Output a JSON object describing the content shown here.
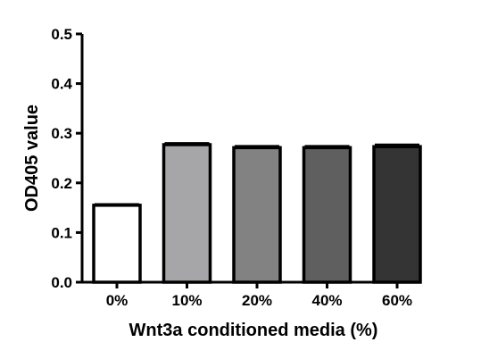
{
  "chart_data": {
    "type": "bar",
    "categories": [
      "0%",
      "10%",
      "20%",
      "40%",
      "60%"
    ],
    "values": [
      0.155,
      0.277,
      0.271,
      0.271,
      0.273
    ],
    "errors": [
      0.002,
      0.003,
      0.003,
      0.003,
      0.004
    ],
    "bar_colors": [
      "#ffffff",
      "#a6a6a8",
      "#828282",
      "#5f5f5f",
      "#343434"
    ],
    "xlabel": "Wnt3a conditioned media (%)",
    "ylabel": "OD405 value",
    "ylim": [
      0,
      0.5
    ],
    "yticks": [
      0.0,
      0.1,
      0.2,
      0.3,
      0.4,
      0.5
    ],
    "ytick_labels": [
      "0.0",
      "0.1",
      "0.2",
      "0.3",
      "0.4",
      "0.5"
    ],
    "grid": false,
    "legend": "none"
  }
}
